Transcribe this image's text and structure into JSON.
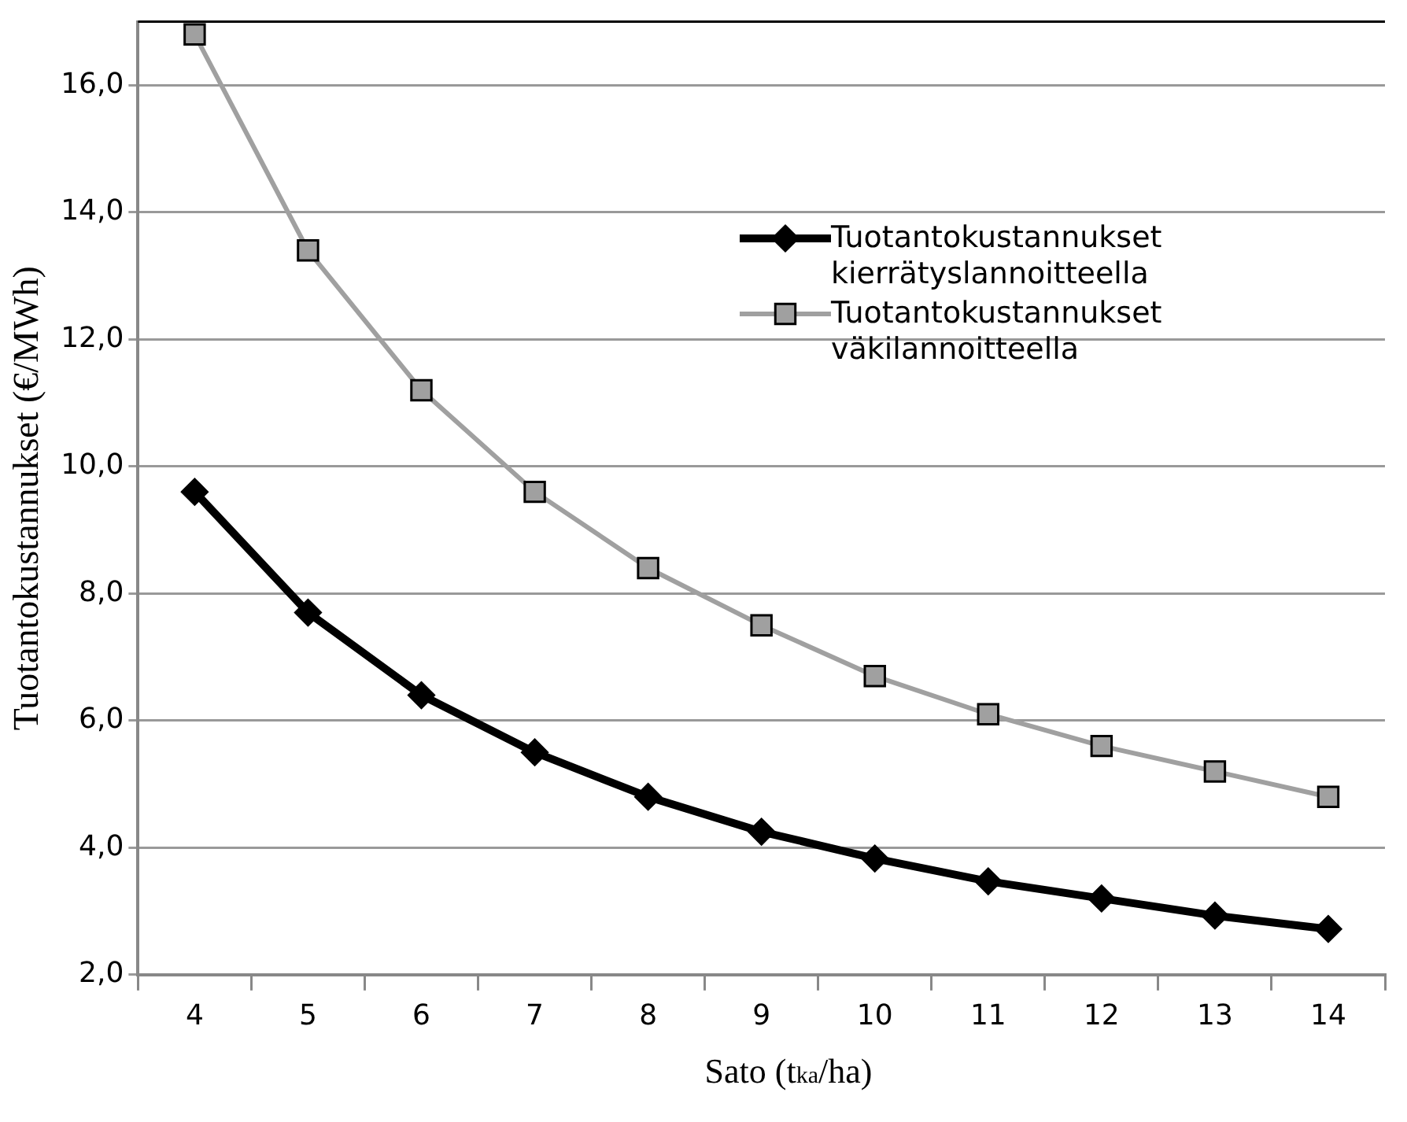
{
  "chart_data": {
    "type": "line",
    "xlabel": "Sato (t$_{ka}$/ha)",
    "ylabel": "Tuotantokustannukset (€/MWh)",
    "categories": [
      "4",
      "5",
      "6",
      "7",
      "8",
      "9",
      "10",
      "11",
      "12",
      "13",
      "14"
    ],
    "series": [
      {
        "name": "Tuotantokustannukset kierrätyslannoitteella",
        "color": "#000000",
        "marker": "diamond",
        "values": [
          9.6,
          7.7,
          6.4,
          5.5,
          4.8,
          4.25,
          3.83,
          3.47,
          3.2,
          2.93,
          2.72
        ]
      },
      {
        "name": "Tuotantokustannukset väkilannoitteella",
        "color": "#a0a0a0",
        "marker": "square",
        "values": [
          16.8,
          13.4,
          11.2,
          9.6,
          8.4,
          7.5,
          6.7,
          6.1,
          5.6,
          5.2,
          4.8
        ]
      }
    ],
    "ylim": [
      2,
      17
    ],
    "yticks": [
      {
        "value": 2,
        "label": "2,0"
      },
      {
        "value": 4,
        "label": "4,0"
      },
      {
        "value": 6,
        "label": "6,0"
      },
      {
        "value": 8,
        "label": "8,0"
      },
      {
        "value": 10,
        "label": "10,0"
      },
      {
        "value": 12,
        "label": "12,0"
      },
      {
        "value": 14,
        "label": "14,0"
      },
      {
        "value": 16,
        "label": "16,0"
      }
    ],
    "grid": "y",
    "legend": "top right",
    "line_style": "solid"
  }
}
